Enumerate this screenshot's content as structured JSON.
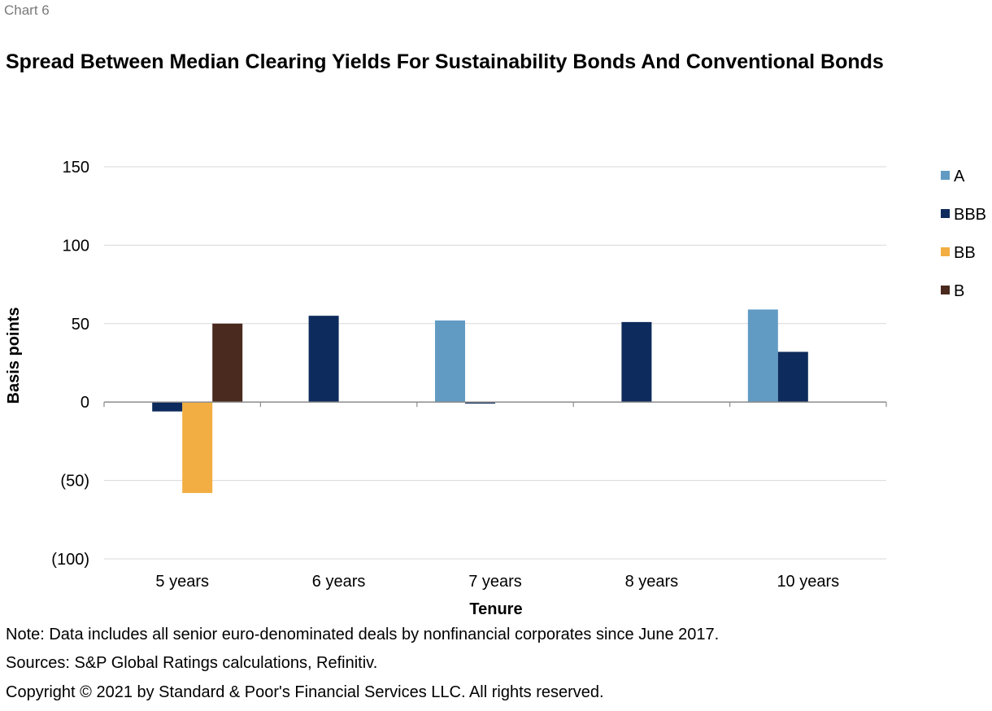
{
  "header": {
    "chart_label": "Chart 6",
    "title": "Spread Between Median Clearing Yields For Sustainability Bonds And Conventional Bonds"
  },
  "footer": {
    "note": "Note: Data includes all senior euro-denominated deals by nonfinancial corporates since June 2017.",
    "sources": "Sources: S&P Global Ratings calculations, Refinitiv.",
    "copyright": "Copyright © 2021 by Standard & Poor's Financial Services LLC. All rights reserved."
  },
  "chart_data": {
    "type": "bar",
    "title": "Spread Between Median Clearing Yields For Sustainability Bonds And Conventional Bonds",
    "xlabel": "Tenure",
    "ylabel": "Basis points",
    "categories": [
      "5 years",
      "6 years",
      "7 years",
      "8 years",
      "10 years"
    ],
    "series": [
      {
        "name": "A",
        "color": "#619bc3",
        "values": [
          null,
          null,
          52,
          null,
          59
        ]
      },
      {
        "name": "BBB",
        "color": "#0d2b5c",
        "values": [
          -6,
          55,
          -1,
          51,
          32
        ]
      },
      {
        "name": "BB",
        "color": "#f2ae42",
        "values": [
          -58,
          null,
          null,
          null,
          null
        ]
      },
      {
        "name": "B",
        "color": "#4a2a1e",
        "values": [
          50,
          null,
          null,
          null,
          null
        ]
      }
    ],
    "ylim": [
      -100,
      150
    ],
    "yticks": [
      150,
      100,
      50,
      0,
      -50,
      -100
    ],
    "ytick_labels": [
      "150",
      "100",
      "50",
      "0",
      "(50)",
      "(100)"
    ],
    "grid": true,
    "legend_position": "right"
  }
}
